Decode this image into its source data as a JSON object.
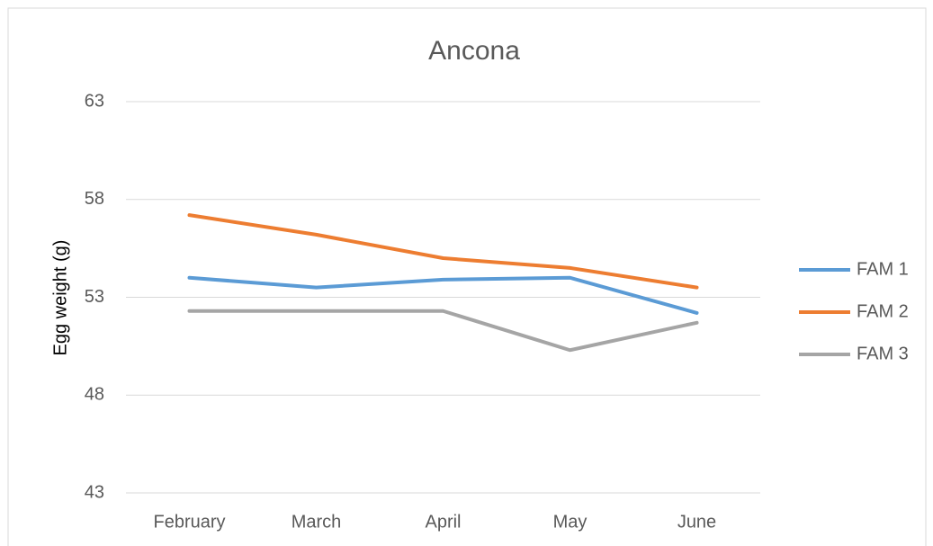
{
  "chart_data": {
    "type": "line",
    "title": "Ancona",
    "y_label": "Egg weight (g)",
    "categories": [
      "February",
      "March",
      "April",
      "May",
      "June"
    ],
    "series": [
      {
        "name": "FAM 1",
        "color": "#5b9bd5",
        "values": [
          54.0,
          53.5,
          53.9,
          54.0,
          52.2
        ]
      },
      {
        "name": "FAM 2",
        "color": "#ed7d31",
        "values": [
          57.2,
          56.2,
          55.0,
          54.5,
          53.5
        ]
      },
      {
        "name": "FAM 3",
        "color": "#a5a5a5",
        "values": [
          52.3,
          52.3,
          52.3,
          50.3,
          51.7
        ]
      }
    ],
    "ylim": [
      43,
      63
    ],
    "yticks": [
      43,
      48,
      53,
      58,
      63
    ],
    "grid": true,
    "legend": "right"
  }
}
